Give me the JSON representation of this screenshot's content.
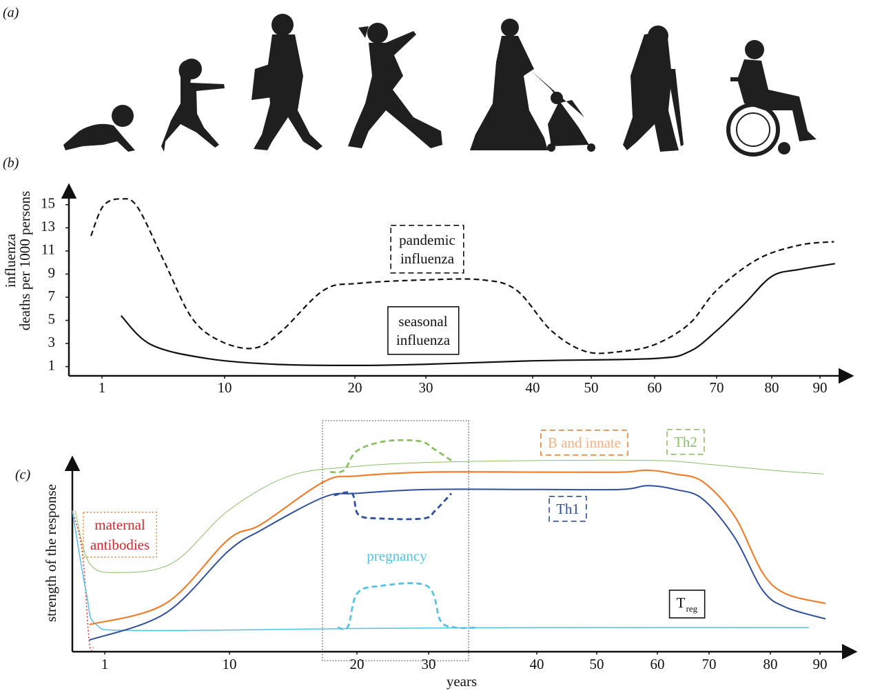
{
  "panel_labels": [
    "(a)",
    "(b)",
    "(c)"
  ],
  "chart_data": [
    {
      "type": "line",
      "ylabel": [
        "influenza",
        "deaths per 1000 persons"
      ],
      "xlim": [
        -1.4,
        96.4
      ],
      "xticks": [
        1,
        10,
        20,
        30,
        40,
        50,
        60,
        70,
        80,
        90
      ],
      "ylim": [
        0.2,
        16.6
      ],
      "yticks": [
        1,
        3,
        5,
        7,
        9,
        11,
        13,
        15
      ],
      "series": [
        {
          "label": [
            "pandemic",
            "influenza"
          ],
          "color": "#111111",
          "style": "dashed",
          "x": [
            0.2,
            1.1,
            2.4,
            3.6,
            5.6,
            7.6,
            9.7,
            12.3,
            14.4,
            17.6,
            20.5,
            30,
            35.3,
            38.5,
            43.2,
            49.1,
            54.6,
            60,
            65.6,
            70,
            77.5,
            85.7,
            92.9
          ],
          "values": [
            12.3,
            14.9,
            15.5,
            14.8,
            10.0,
            5.2,
            3.2,
            2.6,
            4.1,
            7.6,
            8.2,
            8.5,
            8.5,
            7.6,
            4.1,
            2.3,
            2.3,
            2.9,
            4.7,
            7.6,
            10.3,
            11.5,
            11.8
          ]
        },
        {
          "label": [
            "seasonal",
            "influenza"
          ],
          "color": "#111111",
          "style": "solid",
          "x": [
            2.4,
            4.6,
            8.7,
            13.9,
            20,
            30,
            40,
            60,
            65.6,
            70,
            75,
            80,
            85.7,
            93.1
          ],
          "values": [
            5.4,
            2.9,
            1.7,
            1.2,
            1.1,
            1.2,
            1.5,
            1.7,
            2.3,
            4.1,
            6.4,
            8.8,
            9.4,
            9.9
          ]
        }
      ]
    },
    {
      "type": "line",
      "ylabel": "strength of the response",
      "xlabel": "years",
      "xlim": [
        -1.3,
        96.9
      ],
      "xticks": [
        1,
        10,
        20,
        30,
        40,
        50,
        60,
        70,
        80,
        90
      ],
      "ylim": [
        0,
        100
      ],
      "series": [
        {
          "label": [
            "maternal",
            "antibodies"
          ],
          "color": "#d9232a",
          "style": "dotted",
          "label_color": "#d9232a",
          "box": "dotted",
          "box_color": "#ee7f2d",
          "x": [
            -1.3,
            -0.6,
            -0.1,
            0.2
          ],
          "values": [
            73,
            52,
            5,
            2
          ]
        },
        {
          "label": [
            "T"
          ],
          "label_subscript": "reg",
          "color": "#52c2e8",
          "style": "solid",
          "label_color": "#111111",
          "box": "solid",
          "box_color": "#111111",
          "x": [
            -1.3,
            -0.3,
            0.4,
            3.4,
            20,
            40,
            87.8
          ],
          "values": [
            73,
            30,
            14,
            11,
            12,
            12.5,
            12.5
          ]
        },
        {
          "label": [
            "Th1"
          ],
          "color": "#2e4f9b",
          "style": "solid",
          "label_color": "#2e4f9b",
          "box": "dashed",
          "box_color": "#2e4f9b",
          "x": [
            -0.1,
            5.4,
            9.9,
            12.5,
            17.4,
            20,
            30,
            40,
            53.9,
            58.4,
            63.5,
            68.8,
            74.2,
            78.7,
            83.1,
            91.1
          ],
          "values": [
            6,
            20,
            52,
            63,
            80,
            82,
            84,
            84,
            84,
            86,
            84,
            79,
            59,
            32,
            23,
            17
          ]
        },
        {
          "label": [
            "B and innate"
          ],
          "color": "#ee7f2d",
          "style": "solid",
          "label_color": "#f4b183",
          "box": "dashed",
          "box_color": "#ee7f2d",
          "x": [
            -0.1,
            5.4,
            9.9,
            12.5,
            17.4,
            20,
            30,
            40,
            53.9,
            58.4,
            63.5,
            68.8,
            74.2,
            78.7,
            83.1,
            91.1
          ],
          "values": [
            14,
            25,
            58,
            66,
            88,
            91,
            93,
            93,
            93,
            94,
            92,
            88,
            70,
            41,
            30,
            25
          ]
        },
        {
          "label": [
            "Th2"
          ],
          "color": "#8cc063",
          "style": "thin",
          "label_color": "#8cc063",
          "box": "dashed",
          "box_color": "#8cc063",
          "x": [
            -1.1,
            -0.1,
            1.9,
            5.9,
            9.9,
            14.7,
            20,
            30,
            40,
            60,
            70,
            80,
            90.7
          ],
          "values": [
            73,
            46,
            41,
            46,
            73,
            91,
            96,
            98,
            99,
            99,
            97,
            94,
            92
          ]
        }
      ],
      "pregnancy": {
        "label": "pregnancy",
        "label_color": "#52c2e8",
        "region": [
          17.3,
          33.7
        ],
        "series": [
          {
            "color": "#8cc063",
            "x": [
              17.9,
              19,
              20,
              24,
              28.8,
              30.5,
              32.1
            ],
            "values": [
              93,
              94,
              104,
              109,
              109,
              105,
              99
            ]
          },
          {
            "color": "#2e4f9b",
            "x": [
              18.2,
              19.6,
              20.2,
              23.1,
              29.3,
              30.6,
              32.1
            ],
            "values": [
              81,
              82,
              71,
              69,
              69,
              73,
              82
            ]
          },
          {
            "color": "#52c2e8",
            "x": [
              18.5,
              19.3,
              20,
              23.1,
              29.8,
              31.1,
              32.5,
              34.4
            ],
            "values": [
              12.5,
              13,
              30,
              34,
              34,
              16,
              12.5,
              12.5
            ]
          }
        ]
      }
    }
  ]
}
